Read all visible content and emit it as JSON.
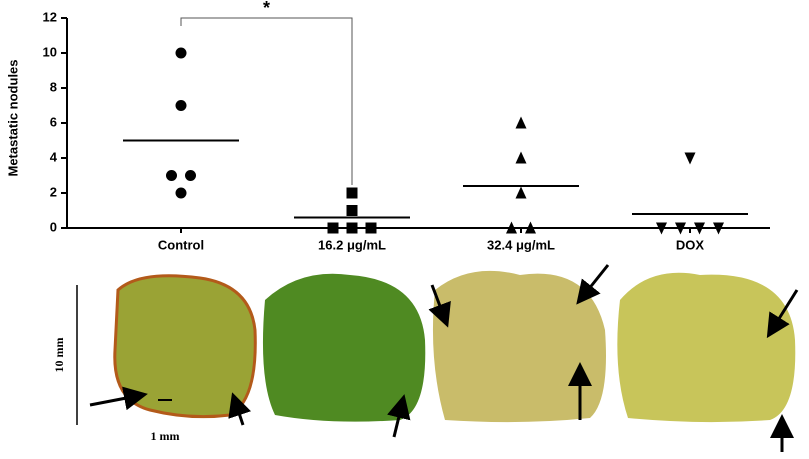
{
  "chart_data": {
    "type": "dot",
    "y_label": "Metastatic nodules",
    "categories": [
      "Control",
      "16.2 μg/mL",
      "32.4 μg/mL",
      "DOX"
    ],
    "markers": [
      "circle",
      "square",
      "triangle",
      "triangle-down"
    ],
    "color": "#000000",
    "values": [
      [
        10,
        7,
        3,
        3,
        2
      ],
      [
        2,
        1,
        0,
        0,
        0
      ],
      [
        6,
        4,
        2,
        0,
        0
      ],
      [
        4,
        0,
        0,
        0,
        0
      ]
    ],
    "means": [
      5,
      0.6,
      2.4,
      0.8
    ],
    "ylim": [
      0,
      12
    ],
    "yticks": [
      0,
      2,
      4,
      6,
      8,
      10,
      12
    ],
    "significance": {
      "from": 0,
      "to": 1,
      "label": "*"
    }
  },
  "image_panel": {
    "scale_vertical": "10 mm",
    "scale_horizontal": "1 mm"
  }
}
